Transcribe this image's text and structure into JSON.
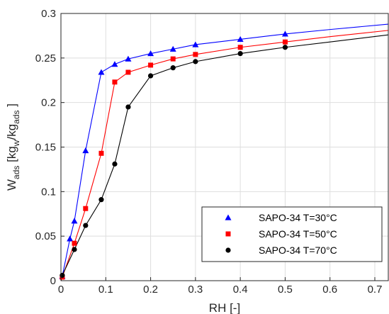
{
  "chart_data": {
    "type": "line",
    "xlabel": "RH [-]",
    "ylabel": {
      "main": "W",
      "sub1": "ads",
      "mid1": " [kg",
      "sub2": "w",
      "mid2": "/kg",
      "sub3": "ads",
      "end": " ]"
    },
    "xlim": [
      0,
      0.73
    ],
    "ylim": [
      0,
      0.3
    ],
    "xticks": [
      "0",
      "0.1",
      "0.2",
      "0.3",
      "0.4",
      "0.5",
      "0.6",
      "0.7"
    ],
    "yticks": [
      "0",
      "0.05",
      "0.1",
      "0.15",
      "0.2",
      "0.25",
      "0.3"
    ],
    "grid": true,
    "legend_position": "bottom-right",
    "series": [
      {
        "name": "SAPO-34 T=30°C",
        "color": "#0000ff",
        "marker": "triangle",
        "points": [
          [
            0.003,
            0.005
          ],
          [
            0.02,
            0.047
          ],
          [
            0.03,
            0.067
          ],
          [
            0.055,
            0.146
          ],
          [
            0.09,
            0.234
          ],
          [
            0.12,
            0.243
          ],
          [
            0.15,
            0.249
          ],
          [
            0.2,
            0.255
          ],
          [
            0.25,
            0.26
          ],
          [
            0.3,
            0.265
          ],
          [
            0.4,
            0.271
          ],
          [
            0.5,
            0.277
          ]
        ],
        "curve": [
          [
            0,
            0
          ],
          [
            0.003,
            0.005
          ],
          [
            0.02,
            0.047
          ],
          [
            0.03,
            0.067
          ],
          [
            0.055,
            0.146
          ],
          [
            0.09,
            0.234
          ],
          [
            0.12,
            0.243
          ],
          [
            0.15,
            0.249
          ],
          [
            0.2,
            0.255
          ],
          [
            0.25,
            0.26
          ],
          [
            0.3,
            0.265
          ],
          [
            0.4,
            0.271
          ],
          [
            0.5,
            0.277
          ],
          [
            0.6,
            0.282
          ],
          [
            0.73,
            0.288
          ]
        ]
      },
      {
        "name": "SAPO-34 T=50°C",
        "color": "#ff0000",
        "marker": "square",
        "points": [
          [
            0.003,
            0.004
          ],
          [
            0.03,
            0.042
          ],
          [
            0.055,
            0.081
          ],
          [
            0.09,
            0.143
          ],
          [
            0.12,
            0.223
          ],
          [
            0.15,
            0.234
          ],
          [
            0.2,
            0.242
          ],
          [
            0.25,
            0.249
          ],
          [
            0.3,
            0.254
          ],
          [
            0.4,
            0.262
          ],
          [
            0.5,
            0.268
          ]
        ],
        "curve": [
          [
            0,
            0
          ],
          [
            0.003,
            0.004
          ],
          [
            0.03,
            0.042
          ],
          [
            0.055,
            0.081
          ],
          [
            0.09,
            0.143
          ],
          [
            0.12,
            0.223
          ],
          [
            0.15,
            0.234
          ],
          [
            0.2,
            0.242
          ],
          [
            0.25,
            0.249
          ],
          [
            0.3,
            0.254
          ],
          [
            0.4,
            0.262
          ],
          [
            0.5,
            0.268
          ],
          [
            0.6,
            0.274
          ],
          [
            0.73,
            0.281
          ]
        ]
      },
      {
        "name": "SAPO-34 T=70°C",
        "color": "#000000",
        "marker": "circle",
        "points": [
          [
            0.003,
            0.006
          ],
          [
            0.03,
            0.035
          ],
          [
            0.055,
            0.062
          ],
          [
            0.09,
            0.091
          ],
          [
            0.12,
            0.131
          ],
          [
            0.15,
            0.195
          ],
          [
            0.2,
            0.23
          ],
          [
            0.25,
            0.239
          ],
          [
            0.3,
            0.246
          ],
          [
            0.4,
            0.255
          ],
          [
            0.5,
            0.262
          ]
        ],
        "curve": [
          [
            0,
            0
          ],
          [
            0.003,
            0.006
          ],
          [
            0.03,
            0.035
          ],
          [
            0.055,
            0.062
          ],
          [
            0.09,
            0.091
          ],
          [
            0.12,
            0.131
          ],
          [
            0.15,
            0.195
          ],
          [
            0.2,
            0.23
          ],
          [
            0.25,
            0.239
          ],
          [
            0.3,
            0.246
          ],
          [
            0.4,
            0.255
          ],
          [
            0.5,
            0.262
          ],
          [
            0.6,
            0.268
          ],
          [
            0.73,
            0.276
          ]
        ]
      }
    ]
  }
}
